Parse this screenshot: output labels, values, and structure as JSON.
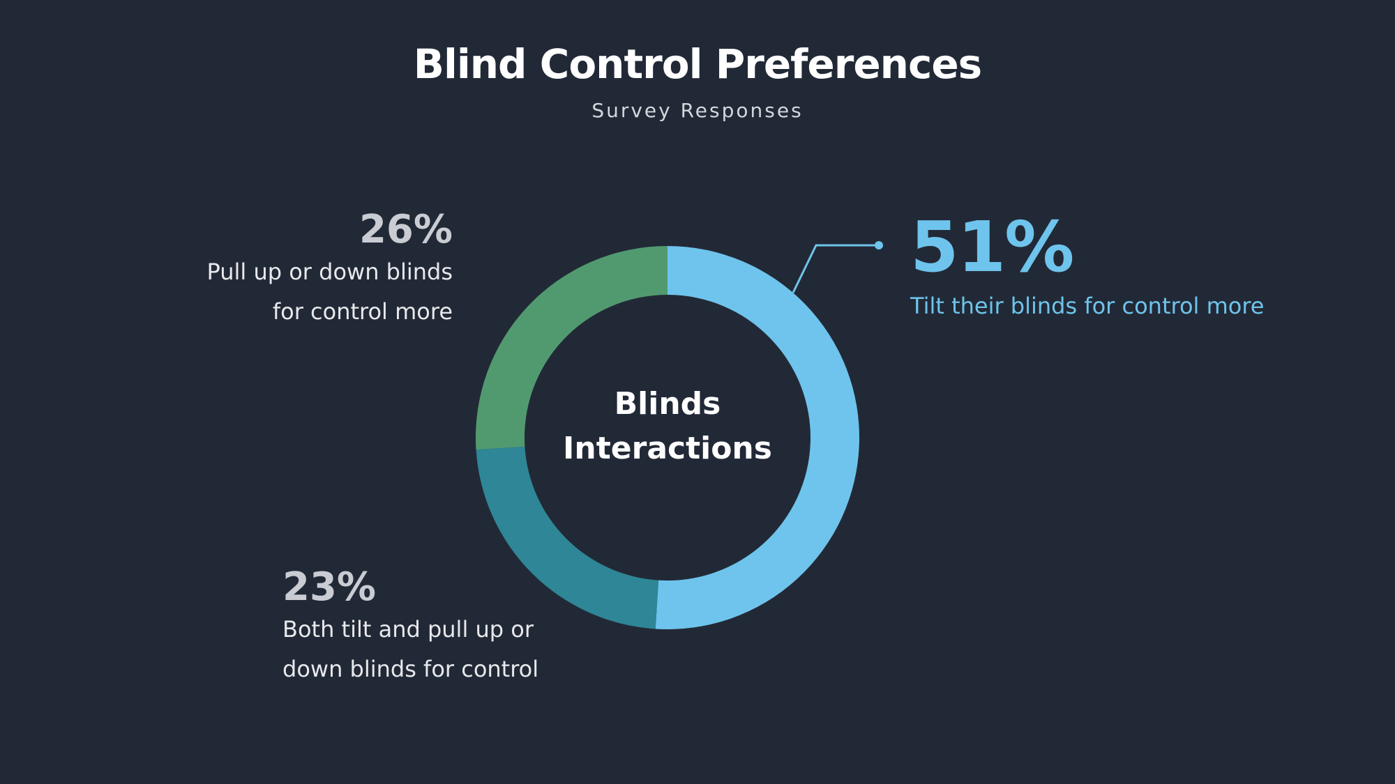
{
  "title": "Blind Control Preferences",
  "subtitle": "Survey Responses",
  "center_label_lines": [
    "Blinds",
    "Interactions"
  ],
  "callouts": {
    "tilt": {
      "pct": "51%",
      "lines": [
        "Tilt their blinds for control more"
      ]
    },
    "pull": {
      "pct": "26%",
      "lines": [
        "Pull up or down blinds",
        "for control more"
      ]
    },
    "both": {
      "pct": "23%",
      "lines": [
        "Both tilt and pull up or",
        "down blinds for control"
      ]
    }
  },
  "colors": {
    "background": "#222936",
    "tilt": "#6ec4ec",
    "both": "#2e8696",
    "pull": "#519a70"
  },
  "chart_data": {
    "type": "pie",
    "title": "Blind Control Preferences",
    "subtitle": "Survey Responses",
    "center_label": "Blinds Interactions",
    "categories": [
      "Tilt their blinds for control more",
      "Both tilt and pull up or down blinds for control",
      "Pull up or down blinds for control more"
    ],
    "values": [
      51,
      23,
      26
    ],
    "unit": "%",
    "colors": [
      "#6ec4ec",
      "#2e8696",
      "#519a70"
    ],
    "legend": "none"
  }
}
